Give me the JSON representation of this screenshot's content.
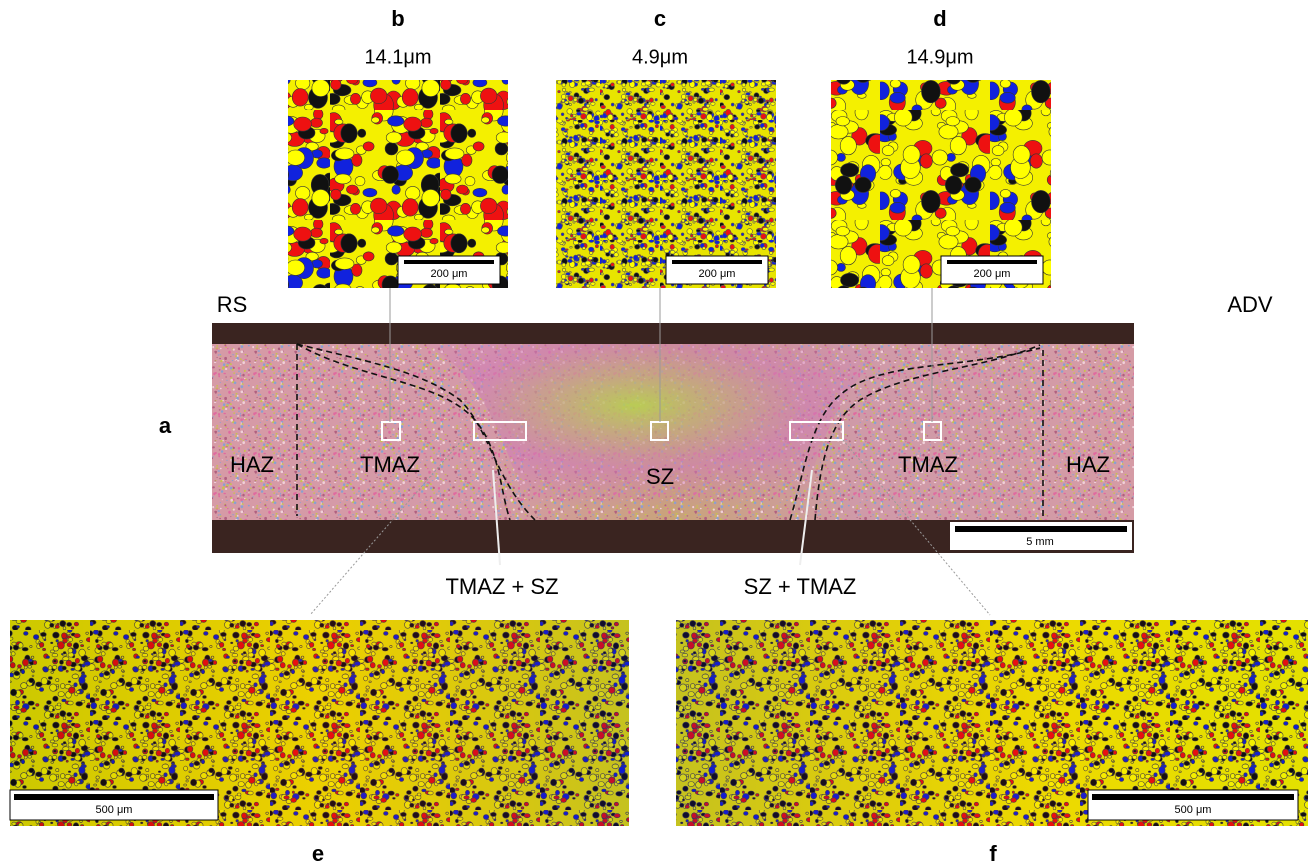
{
  "panels": {
    "b": {
      "label": "b",
      "grain_size": "14.1μm",
      "scale_bar": "200 μm"
    },
    "c": {
      "label": "c",
      "grain_size": "4.9μm",
      "scale_bar": "200 μm"
    },
    "d": {
      "label": "d",
      "grain_size": "14.9μm",
      "scale_bar": "200 μm"
    },
    "e": {
      "label": "e",
      "scale_bar": "500 μm"
    },
    "f": {
      "label": "f",
      "scale_bar": "500 μm"
    }
  },
  "macro": {
    "label": "a",
    "left_side": "RS",
    "right_side": "ADV",
    "zones": [
      "HAZ",
      "TMAZ",
      "SZ",
      "TMAZ",
      "HAZ"
    ],
    "scale_bar": "5 mm",
    "callouts": [
      "TMAZ + SZ",
      "SZ + TMAZ"
    ]
  }
}
